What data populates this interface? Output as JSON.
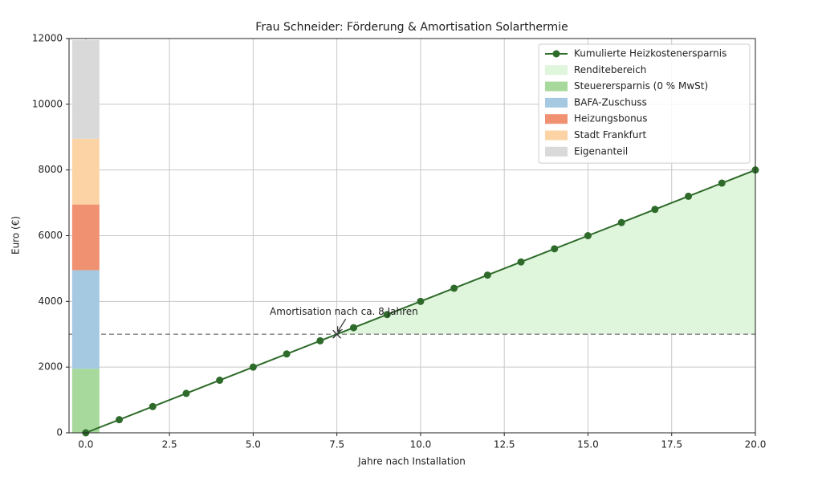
{
  "chart_data": {
    "type": "combo",
    "title": "Frau Schneider: Förderung & Amortisation Solarthermie",
    "xlabel": "Jahre nach Installation",
    "ylabel": "Euro (€)",
    "xlim": [
      -0.5,
      20
    ],
    "ylim": [
      0,
      12000
    ],
    "xticks": [
      {
        "value": 0,
        "label": "0.0"
      },
      {
        "value": 2.5,
        "label": "2.5"
      },
      {
        "value": 5,
        "label": "5.0"
      },
      {
        "value": 7.5,
        "label": "7.5"
      },
      {
        "value": 10,
        "label": "10.0"
      },
      {
        "value": 12.5,
        "label": "12.5"
      },
      {
        "value": 15,
        "label": "15.0"
      },
      {
        "value": 17.5,
        "label": "17.5"
      },
      {
        "value": 20,
        "label": "20.0"
      }
    ],
    "yticks": [
      0,
      2000,
      4000,
      6000,
      8000,
      10000,
      12000
    ],
    "grid": true,
    "legend": "upper right",
    "x": [
      0,
      1,
      2,
      3,
      4,
      5,
      6,
      7,
      8,
      9,
      10,
      11,
      12,
      13,
      14,
      15,
      16,
      17,
      18,
      19,
      20
    ],
    "series": [
      {
        "name": "Kumulierte Heizkostenersparnis",
        "color": "#2e6b2a",
        "values": [
          0,
          400,
          800,
          1200,
          1600,
          2000,
          2400,
          2800,
          3200,
          3600,
          4000,
          4400,
          4800,
          5200,
          5600,
          6000,
          6400,
          6800,
          7200,
          7600,
          8000
        ]
      }
    ],
    "fill": {
      "name": "Renditebereich",
      "color": "#dff5dc",
      "threshold": 3000
    },
    "stack": {
      "x": 0,
      "segments": [
        {
          "name": "Steuerersparnis (0 % MwSt)",
          "color": "#a8d99c",
          "value": 1950
        },
        {
          "name": "BAFA-Zuschuss",
          "color": "#a6c9e2",
          "value": 3000
        },
        {
          "name": "Heizungsbonus",
          "color": "#f09272",
          "value": 2000
        },
        {
          "name": "Stadt Frankfurt",
          "color": "#fcd3a5",
          "value": 2000
        },
        {
          "name": "Eigenanteil",
          "color": "#d9d9d9",
          "value": 3000
        }
      ]
    },
    "annotation": {
      "text": "Amortisation nach ca. 8 Jahren",
      "x": 7.5,
      "y": 3000
    }
  }
}
